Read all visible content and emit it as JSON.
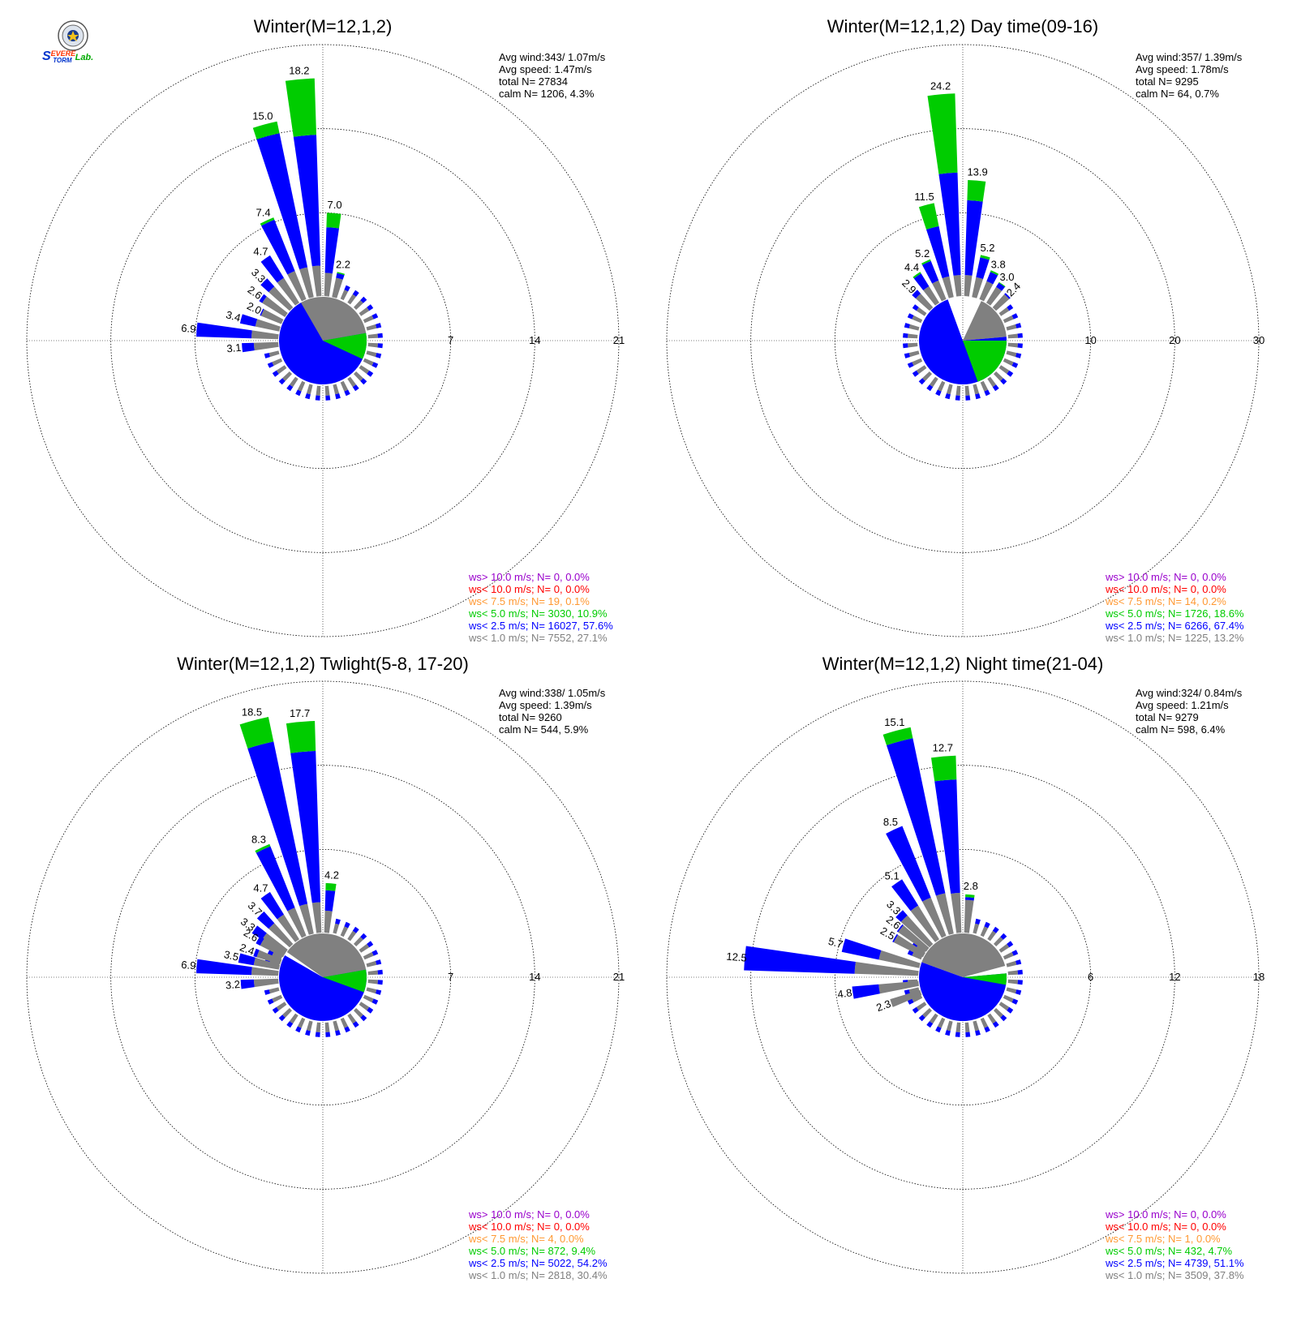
{
  "logo": {
    "text_s": "S",
    "text_evere": "EVERE",
    "text_torm": "TORM",
    "text_lab": "Lab."
  },
  "chart_data": [
    {
      "type": "windrose",
      "title": "Winter(M=12,1,2)",
      "rings": [
        7,
        14,
        21
      ],
      "ring_labels": [
        "7",
        "14",
        "21"
      ],
      "stats": [
        "Avg wind:343/ 1.07m/s",
        "Avg speed: 1.47m/s",
        "total N=      27834",
        "calm N=   1206,   4.3%"
      ],
      "legend": [
        "ws> 10.0 m/s; N=     0,  0.0%",
        "ws< 10.0 m/s; N=     0,  0.0%",
        "ws<  7.5 m/s; N=    19,  0.1%",
        "ws<  5.0 m/s; N=  3030, 10.9%",
        "ws<  2.5 m/s; N= 16027, 57.6%",
        "ws<  1.0 m/s; N=  7552, 27.1%"
      ],
      "legend_colors": [
        "#9900cc",
        "#ff0000",
        "#ff9933",
        "#00cc00",
        "#0000ff",
        "#808080"
      ],
      "center": {
        "gray": [
          315,
          80
        ],
        "blue": [
          80,
          330
        ],
        "green": [
          80,
          115
        ]
      },
      "sectors": [
        {
          "dir": 355,
          "total": 18.2,
          "gray": 2.6,
          "blue": 13.5,
          "label": "18.2"
        },
        {
          "dir": 345,
          "total": 15.0,
          "gray": 2.6,
          "blue": 14.0,
          "label": "15.0"
        },
        {
          "dir": 335,
          "total": 7.4,
          "gray": 2.6,
          "blue": 7.2,
          "label": "7.4"
        },
        {
          "dir": 325,
          "total": 4.7,
          "gray": 2.5,
          "blue": 4.7,
          "label": "4.7"
        },
        {
          "dir": 315,
          "total": 3.3,
          "gray": 2.4,
          "blue": 3.3,
          "label": "3.3"
        },
        {
          "dir": 305,
          "total": 2.6,
          "gray": 2.3,
          "blue": 2.6,
          "label": "2.6"
        },
        {
          "dir": 295,
          "total": 2.0,
          "gray": 1.9,
          "blue": 2.0,
          "label": "2.0"
        },
        {
          "dir": 285,
          "total": 3.4,
          "gray": 2.1,
          "blue": 3.4,
          "label": "3.4"
        },
        {
          "dir": 275,
          "total": 6.9,
          "gray": 2.3,
          "blue": 6.9,
          "label": "6.9"
        },
        {
          "dir": 265,
          "total": 3.1,
          "gray": 2.1,
          "blue": 3.1,
          "label": "3.1"
        },
        {
          "dir": 5,
          "total": 7.0,
          "gray": 2.0,
          "blue": 5.8,
          "label": "7.0"
        },
        {
          "dir": 15,
          "total": 2.2,
          "gray": 1.7,
          "blue": 2.1,
          "label": "2.2"
        }
      ]
    },
    {
      "type": "windrose",
      "title": "Winter(M=12,1,2) Day time(09-16)",
      "rings": [
        10,
        20,
        30
      ],
      "ring_labels": [
        "10",
        "20",
        "30"
      ],
      "stats": [
        "Avg wind:357/ 1.39m/s",
        "Avg speed: 1.78m/s",
        "total N=       9295",
        "calm N=     64,   0.7%"
      ],
      "legend": [
        "ws> 10.0 m/s; N=     0,  0.0%",
        "ws< 10.0 m/s; N=     0,  0.0%",
        "ws<  7.5 m/s; N=    14,  0.2%",
        "ws<  5.0 m/s; N=  1726, 18.6%",
        "ws<  2.5 m/s; N=  6266, 67.4%",
        "ws<  1.0 m/s; N=  1225, 13.2%"
      ],
      "legend_colors": [
        "#9900cc",
        "#ff0000",
        "#ff9933",
        "#00cc00",
        "#0000ff",
        "#808080"
      ],
      "center": {
        "gray": [
          25,
          85
        ],
        "blue": [
          85,
          340
        ],
        "green": [
          90,
          160
        ]
      },
      "sectors": [
        {
          "dir": 355,
          "total": 24.2,
          "gray": 2.6,
          "blue": 14.8,
          "label": "24.2"
        },
        {
          "dir": 345,
          "total": 11.5,
          "gray": 2.6,
          "blue": 8.7,
          "label": "11.5"
        },
        {
          "dir": 335,
          "total": 5.2,
          "gray": 2.5,
          "blue": 5.0,
          "label": "5.2"
        },
        {
          "dir": 325,
          "total": 4.4,
          "gray": 2.4,
          "blue": 4.2,
          "label": "4.4"
        },
        {
          "dir": 315,
          "total": 2.9,
          "gray": 2.3,
          "blue": 2.9,
          "label": "2.9"
        },
        {
          "dir": 5,
          "total": 13.9,
          "gray": 2.6,
          "blue": 11.5,
          "label": "13.9"
        },
        {
          "dir": 15,
          "total": 5.2,
          "gray": 2.5,
          "blue": 4.9,
          "label": "5.2"
        },
        {
          "dir": 25,
          "total": 3.8,
          "gray": 2.4,
          "blue": 3.6,
          "label": "3.8"
        },
        {
          "dir": 35,
          "total": 3.0,
          "gray": 2.3,
          "blue": 2.9,
          "label": "3.0"
        },
        {
          "dir": 45,
          "total": 2.4,
          "gray": 2.2,
          "blue": 2.4,
          "label": "2.4"
        }
      ]
    },
    {
      "type": "windrose",
      "title": "Winter(M=12,1,2) Twlight(5-8, 17-20)",
      "rings": [
        7,
        14,
        21
      ],
      "ring_labels": [
        "7",
        "14",
        "21"
      ],
      "stats": [
        "Avg wind:338/ 1.05m/s",
        "Avg speed: 1.39m/s",
        "total N=       9260",
        "calm N=    544,   5.9%"
      ],
      "legend": [
        "ws> 10.0 m/s; N=     0,  0.0%",
        "ws< 10.0 m/s; N=     0,  0.0%",
        "ws<  7.5 m/s; N=     4,  0.0%",
        "ws<  5.0 m/s; N=   872,  9.4%",
        "ws<  2.5 m/s; N=  5022, 54.2%",
        "ws<  1.0 m/s; N=  2818, 30.4%"
      ],
      "legend_colors": [
        "#9900cc",
        "#ff0000",
        "#ff9933",
        "#00cc00",
        "#0000ff",
        "#808080"
      ],
      "center": {
        "gray": [
          305,
          80
        ],
        "blue": [
          80,
          300
        ],
        "green": [
          80,
          110
        ]
      },
      "sectors": [
        {
          "dir": 355,
          "total": 17.7,
          "gray": 2.6,
          "blue": 15.2,
          "label": "17.7"
        },
        {
          "dir": 345,
          "total": 18.5,
          "gray": 2.6,
          "blue": 16.4,
          "label": "18.5"
        },
        {
          "dir": 335,
          "total": 8.3,
          "gray": 2.6,
          "blue": 8.1,
          "label": "8.3"
        },
        {
          "dir": 325,
          "total": 4.7,
          "gray": 2.5,
          "blue": 4.7,
          "label": "4.7"
        },
        {
          "dir": 315,
          "total": 3.7,
          "gray": 2.4,
          "blue": 3.7,
          "label": "3.7"
        },
        {
          "dir": 305,
          "total": 3.3,
          "gray": 2.3,
          "blue": 3.3,
          "label": "3.3"
        },
        {
          "dir": 300,
          "total": 2.6,
          "gray": 2.2,
          "blue": 2.6,
          "label": "2.6"
        },
        {
          "dir": 290,
          "total": 2.4,
          "gray": 2.1,
          "blue": 2.4,
          "label": "2.4"
        },
        {
          "dir": 283,
          "total": 3.5,
          "gray": 2.2,
          "blue": 3.5,
          "label": "3.5"
        },
        {
          "dir": 275,
          "total": 6.9,
          "gray": 2.3,
          "blue": 6.9,
          "label": "6.9"
        },
        {
          "dir": 265,
          "total": 3.2,
          "gray": 2.1,
          "blue": 3.2,
          "label": "3.2"
        },
        {
          "dir": 5,
          "total": 4.2,
          "gray": 1.9,
          "blue": 3.6,
          "label": "4.2"
        }
      ]
    },
    {
      "type": "windrose",
      "title": "Winter(M=12,1,2) Night time(21-04)",
      "rings": [
        6,
        12,
        18
      ],
      "ring_labels": [
        "6",
        "12",
        "18"
      ],
      "stats": [
        "Avg wind:324/ 0.84m/s",
        "Avg speed: 1.21m/s",
        "total N=       9279",
        "calm N=    598,   6.4%"
      ],
      "legend": [
        "ws> 10.0 m/s; N=     0,  0.0%",
        "ws< 10.0 m/s; N=     0,  0.0%",
        "ws<  7.5 m/s; N=     1,  0.0%",
        "ws<  5.0 m/s; N=   432,  4.7%",
        "ws<  2.5 m/s; N=  4739, 51.1%",
        "ws<  1.0 m/s; N=  3509, 37.8%"
      ],
      "legend_colors": [
        "#9900cc",
        "#ff0000",
        "#ff9933",
        "#00cc00",
        "#0000ff",
        "#808080"
      ],
      "center": {
        "gray": [
          290,
          75
        ],
        "blue": [
          85,
          290
        ],
        "green": [
          85,
          100
        ]
      },
      "sectors": [
        {
          "dir": 355,
          "total": 12.7,
          "gray": 2.9,
          "blue": 11.0,
          "label": "12.7"
        },
        {
          "dir": 345,
          "total": 15.1,
          "gray": 3.0,
          "blue": 14.3,
          "label": "15.1"
        },
        {
          "dir": 335,
          "total": 8.5,
          "gray": 3.0,
          "blue": 8.5,
          "label": "8.5"
        },
        {
          "dir": 325,
          "total": 5.1,
          "gray": 2.9,
          "blue": 5.1,
          "label": "5.1"
        },
        {
          "dir": 315,
          "total": 3.3,
          "gray": 2.8,
          "blue": 3.3,
          "label": "3.3"
        },
        {
          "dir": 308,
          "total": 2.6,
          "gray": 2.5,
          "blue": 2.6,
          "label": "2.6"
        },
        {
          "dir": 300,
          "total": 2.5,
          "gray": 2.4,
          "blue": 2.5,
          "label": "2.5"
        },
        {
          "dir": 285,
          "total": 5.7,
          "gray": 3.0,
          "blue": 5.7,
          "label": "5.7"
        },
        {
          "dir": 275,
          "total": 12.5,
          "gray": 4.6,
          "blue": 12.5,
          "label": "12.5"
        },
        {
          "dir": 262,
          "total": 4.8,
          "gray": 2.9,
          "blue": 4.8,
          "label": "4.8"
        },
        {
          "dir": 250,
          "total": 2.3,
          "gray": 2.3,
          "blue": 2.3,
          "label": "2.3"
        },
        {
          "dir": 5,
          "total": 2.8,
          "gray": 2.4,
          "blue": 2.6,
          "label": "2.8"
        }
      ]
    }
  ]
}
